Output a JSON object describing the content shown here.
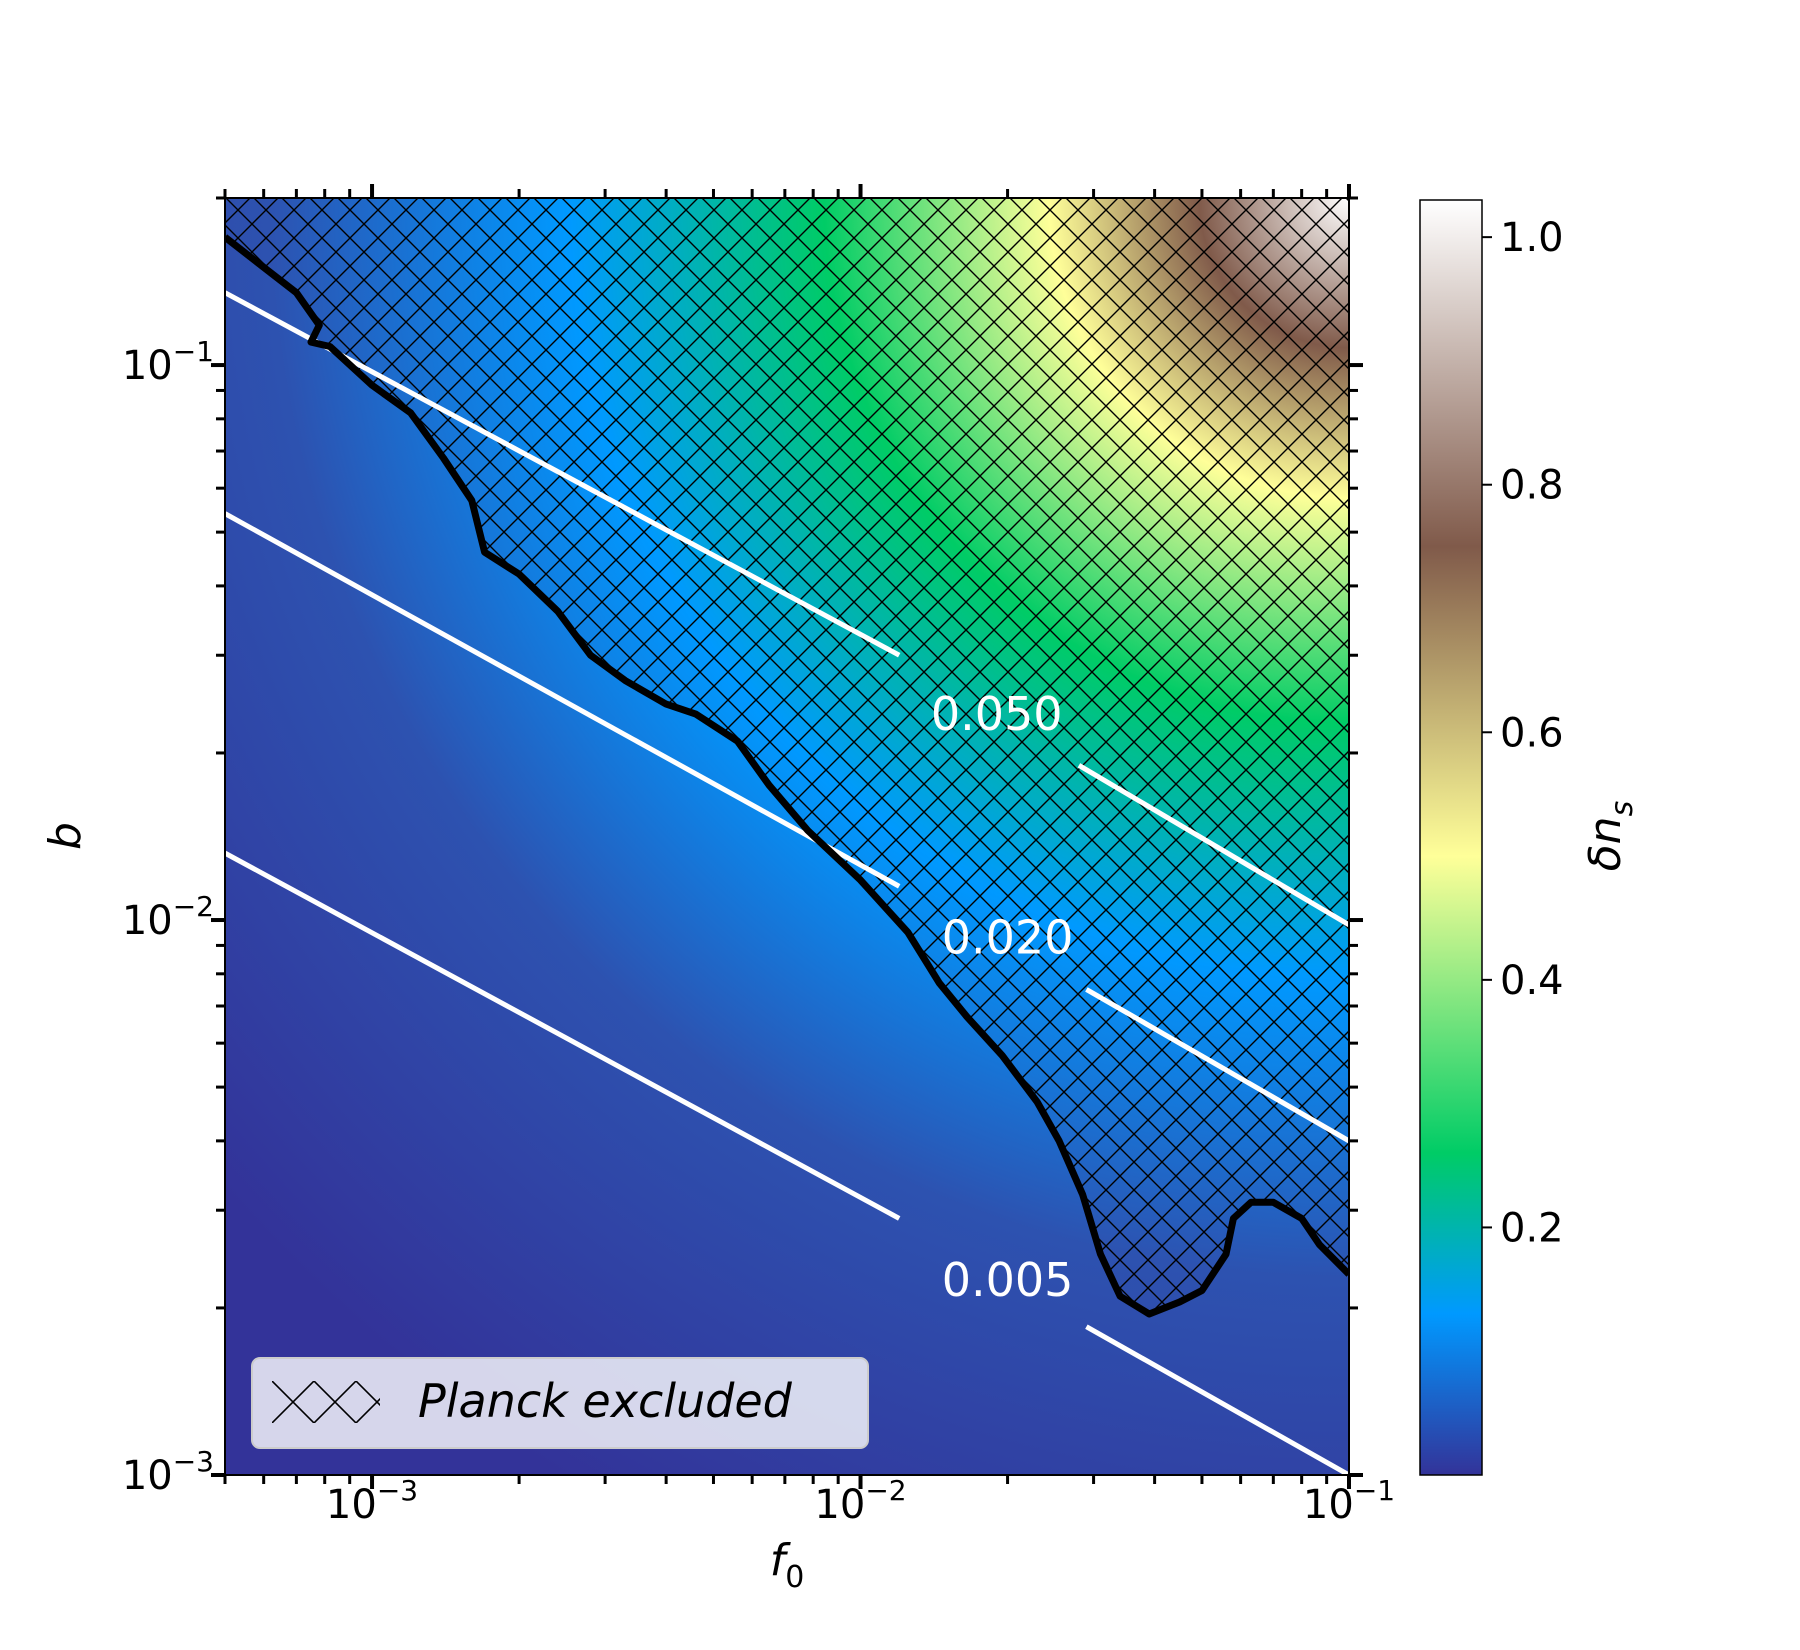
{
  "chart_data": {
    "type": "heatmap",
    "title": "",
    "xlabel": "f",
    "xlabel_sub": "0",
    "ylabel": "b",
    "x_scale": "log",
    "y_scale": "log",
    "xlim": [
      0.0005,
      0.1
    ],
    "ylim": [
      0.001,
      0.2
    ],
    "x_ticks": [
      {
        "value": 0.001,
        "base": "10",
        "exp": "−3"
      },
      {
        "value": 0.01,
        "base": "10",
        "exp": "−2"
      },
      {
        "value": 0.1,
        "base": "10",
        "exp": "−1"
      }
    ],
    "y_ticks": [
      {
        "value": 0.001,
        "base": "10",
        "exp": "−3"
      },
      {
        "value": 0.01,
        "base": "10",
        "exp": "−2"
      },
      {
        "value": 0.1,
        "base": "10",
        "exp": "−1"
      }
    ],
    "colorbar": {
      "label": "δn",
      "label_sub": "s",
      "range": [
        0.0,
        1.03
      ],
      "ticks": [
        {
          "value": 0.2,
          "label": "0.2"
        },
        {
          "value": 0.4,
          "label": "0.4"
        },
        {
          "value": 0.6,
          "label": "0.6"
        },
        {
          "value": 0.8,
          "label": "0.8"
        },
        {
          "value": 1.0,
          "label": "1.0"
        }
      ],
      "colormap_stops": [
        {
          "value": 0.0,
          "color": "#333399"
        },
        {
          "value": 0.13,
          "color": "#0099ff"
        },
        {
          "value": 0.26,
          "color": "#00cc66"
        },
        {
          "value": 0.5,
          "color": "#ffff99"
        },
        {
          "value": 0.75,
          "color": "#805a4a"
        },
        {
          "value": 1.03,
          "color": "#ffffff"
        }
      ]
    },
    "contours": [
      {
        "label": "0.050",
        "value": 0.05,
        "points": [
          [
            0.0005,
            0.135
          ],
          [
            0.012,
            0.03
          ]
        ],
        "points2": [
          [
            0.028,
            0.019
          ],
          [
            0.1,
            0.0098
          ]
        ],
        "label_at": [
          0.019,
          0.022
        ]
      },
      {
        "label": "0.020",
        "value": 0.02,
        "points": [
          [
            0.0005,
            0.054
          ],
          [
            0.012,
            0.0115
          ]
        ],
        "points2": [
          [
            0.029,
            0.0075
          ],
          [
            0.1,
            0.004
          ]
        ],
        "label_at": [
          0.02,
          0.0087
        ]
      },
      {
        "label": "0.005",
        "value": 0.005,
        "points": [
          [
            0.0005,
            0.0132
          ],
          [
            0.012,
            0.0029
          ]
        ],
        "points2": [
          [
            0.029,
            0.00185
          ],
          [
            0.1,
            0.001
          ]
        ],
        "label_at": [
          0.02,
          0.0021
        ]
      }
    ],
    "excluded_boundary": [
      [
        0.0005,
        0.17
      ],
      [
        0.0006,
        0.15
      ],
      [
        0.0007,
        0.135
      ],
      [
        0.00078,
        0.118
      ],
      [
        0.00075,
        0.11
      ],
      [
        0.00082,
        0.108
      ],
      [
        0.001,
        0.092
      ],
      [
        0.0012,
        0.082
      ],
      [
        0.0014,
        0.068
      ],
      [
        0.0016,
        0.057
      ],
      [
        0.0017,
        0.046
      ],
      [
        0.002,
        0.042
      ],
      [
        0.0024,
        0.036
      ],
      [
        0.0028,
        0.03
      ],
      [
        0.0033,
        0.027
      ],
      [
        0.004,
        0.0245
      ],
      [
        0.0046,
        0.0235
      ],
      [
        0.0056,
        0.021
      ],
      [
        0.0065,
        0.0175
      ],
      [
        0.0078,
        0.0145
      ],
      [
        0.01,
        0.0118
      ],
      [
        0.0125,
        0.0095
      ],
      [
        0.0145,
        0.0077
      ],
      [
        0.0165,
        0.0067
      ],
      [
        0.0195,
        0.0057
      ],
      [
        0.023,
        0.0047
      ],
      [
        0.0255,
        0.004
      ],
      [
        0.0285,
        0.0032
      ],
      [
        0.031,
        0.0025
      ],
      [
        0.034,
        0.0021
      ],
      [
        0.039,
        0.00195
      ],
      [
        0.045,
        0.00205
      ],
      [
        0.05,
        0.00215
      ],
      [
        0.056,
        0.0025
      ],
      [
        0.058,
        0.0029
      ],
      [
        0.063,
        0.0031
      ],
      [
        0.07,
        0.0031
      ],
      [
        0.08,
        0.0029
      ],
      [
        0.087,
        0.0026
      ],
      [
        0.1,
        0.0023
      ]
    ],
    "legend": {
      "label": "Planck excluded",
      "placement": "lower-left",
      "hatch": "xx"
    }
  }
}
